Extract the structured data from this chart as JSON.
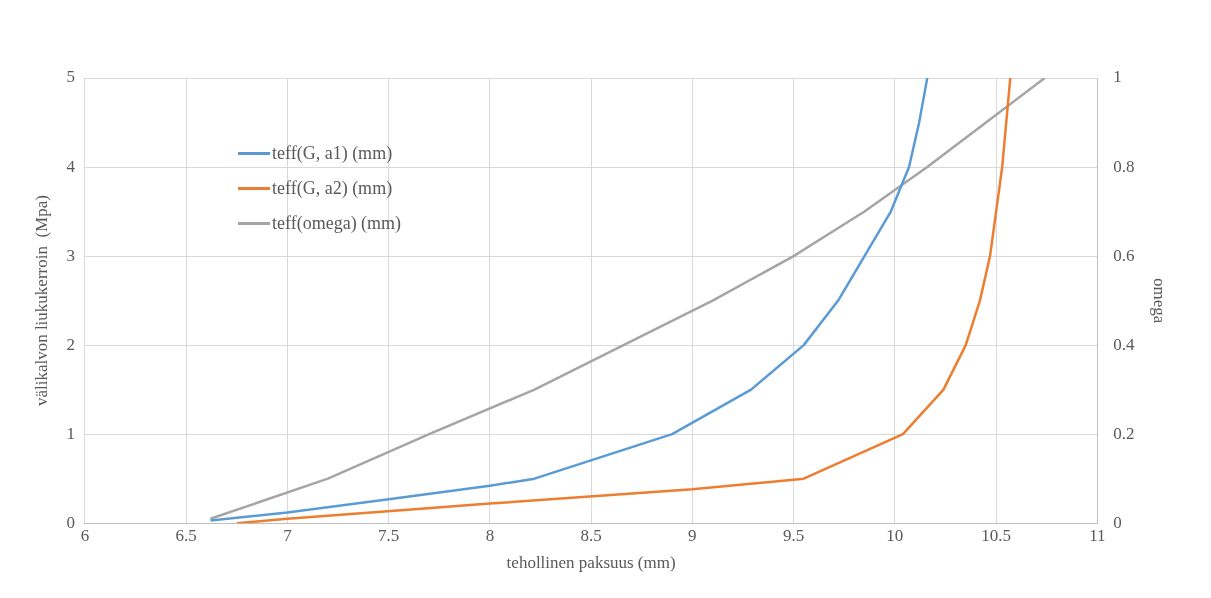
{
  "chart_data": {
    "type": "line",
    "xlabel": "tehollinen paksuus (mm)",
    "ylabel": "välikalvon liukukerroin  (Mpa)",
    "y2label": "omega",
    "xlim": [
      6,
      11
    ],
    "xticks": [
      6,
      6.5,
      7,
      7.5,
      8,
      8.5,
      9,
      9.5,
      10,
      10.5,
      11
    ],
    "ylim": [
      0,
      5
    ],
    "yticks": [
      0,
      1,
      2,
      3,
      4,
      5
    ],
    "y2lim": [
      0,
      1
    ],
    "y2ticks": [
      0,
      0.2,
      0.4,
      0.6,
      0.8,
      1
    ],
    "grid": true,
    "legend": "top left",
    "marker": "none",
    "line_style": "solid",
    "series": [
      {
        "name": "teff(G, a1) (mm)",
        "color": "#5b9bd5",
        "x": [
          6.62,
          7.0,
          7.5,
          8.0,
          8.22,
          8.9,
          9.29,
          9.55,
          9.72,
          9.85,
          9.98,
          10.07,
          10.12,
          10.16
        ],
        "values": [
          0.03,
          0.12,
          0.27,
          0.42,
          0.5,
          1.0,
          1.5,
          2.0,
          2.5,
          3.0,
          3.5,
          4.0,
          4.5,
          5.0
        ]
      },
      {
        "name": "teff(G, a2) (mm)",
        "color": "#ed7d31",
        "x": [
          6.75,
          7.0,
          8.0,
          9.0,
          9.55,
          10.04,
          10.24,
          10.35,
          10.42,
          10.47,
          10.5,
          10.53,
          10.55,
          10.57
        ],
        "values": [
          0,
          0.05,
          0.22,
          0.38,
          0.5,
          1.0,
          1.5,
          2.0,
          2.5,
          3.0,
          3.5,
          4.0,
          4.5,
          5.0
        ]
      },
      {
        "name": "teff(omega) (mm)",
        "color": "#a5a5a5",
        "axis": "y2",
        "x": [
          6.62,
          7.2,
          7.7,
          8.22,
          8.66,
          9.1,
          9.5,
          9.85,
          10.16,
          10.45,
          10.74
        ],
        "values": [
          0.01,
          0.1,
          0.2,
          0.3,
          0.4,
          0.5,
          0.6,
          0.7,
          0.8,
          0.9,
          1.0
        ]
      }
    ]
  }
}
